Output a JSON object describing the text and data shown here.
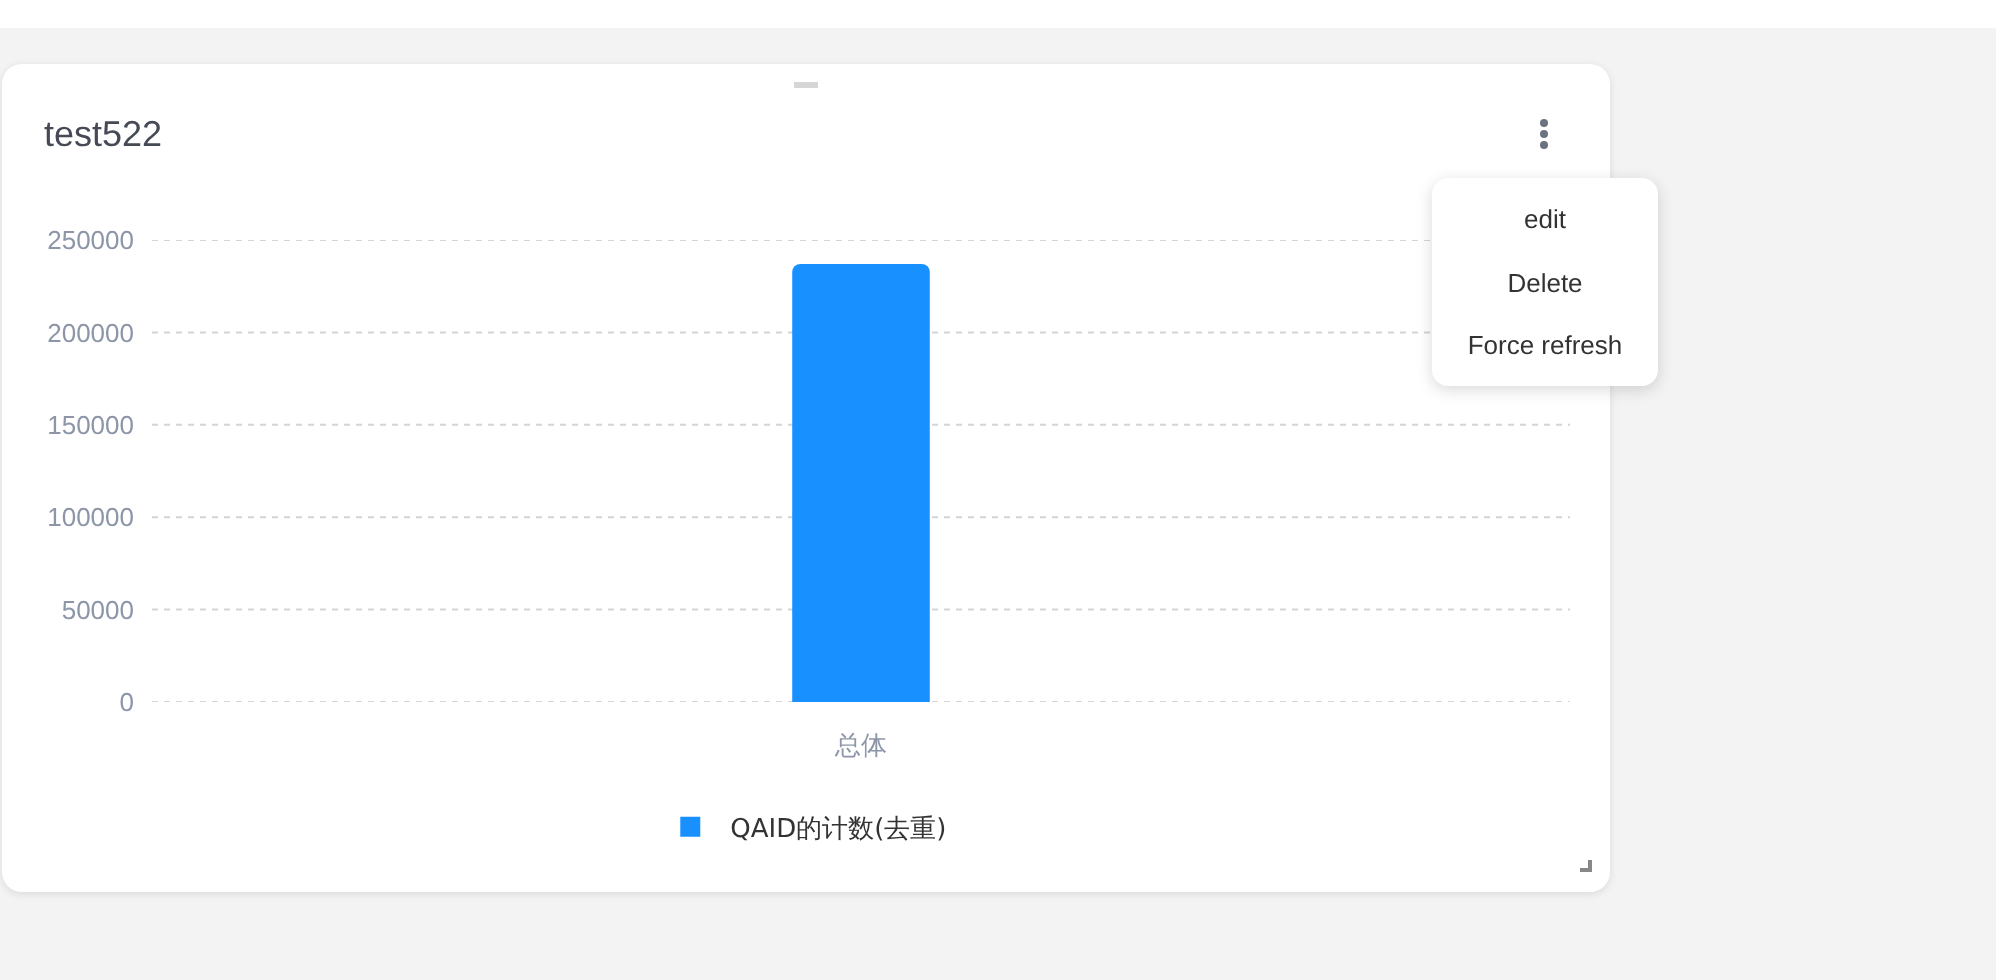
{
  "chart_data": {
    "type": "bar",
    "title": "test522",
    "categories": [
      "总体"
    ],
    "series": [
      {
        "name": "QAID的计数(去重)",
        "color": "#1890ff",
        "values": [
          237000
        ]
      }
    ],
    "ylim": [
      0,
      250000
    ],
    "yticks": [
      0,
      50000,
      100000,
      150000,
      200000,
      250000
    ],
    "grid": "y",
    "legend": "bottom",
    "annotations": [
      "edit",
      "Delete",
      "Force refresh"
    ]
  }
}
